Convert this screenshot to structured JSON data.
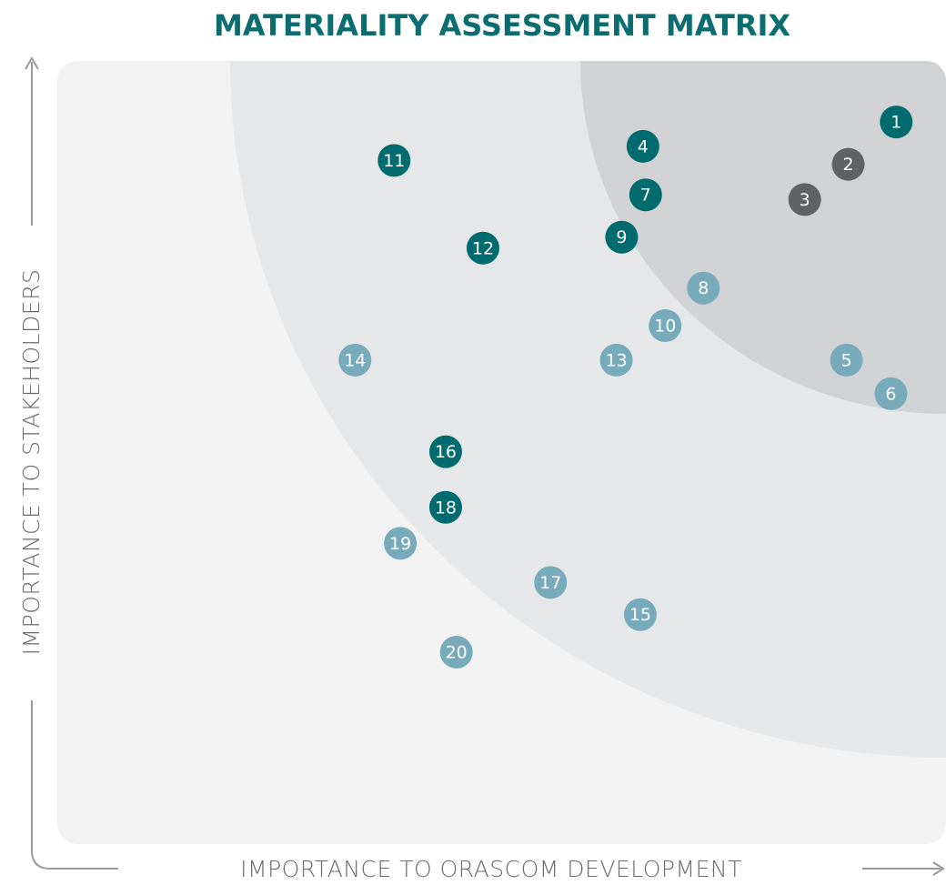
{
  "chart_data": {
    "type": "scatter",
    "title": "MATERIALITY ASSESSMENT MATRIX",
    "x_label": "IMPORTANCE TO ORASCOM DEVELOPMENT",
    "y_label": "IMPORTANCE TO STAKEHOLDERS",
    "xlim": [
      0,
      100
    ],
    "ylim": [
      0,
      100
    ],
    "points": [
      {
        "label": "1",
        "x": 94.4,
        "y": 92.2,
        "color": "#006b6e"
      },
      {
        "label": "2",
        "x": 89.0,
        "y": 86.8,
        "color": "#606163"
      },
      {
        "label": "3",
        "x": 84.1,
        "y": 82.3,
        "color": "#606163"
      },
      {
        "label": "4",
        "x": 65.9,
        "y": 89.1,
        "color": "#006b6e"
      },
      {
        "label": "5",
        "x": 88.8,
        "y": 61.8,
        "color": "#77aabb"
      },
      {
        "label": "6",
        "x": 93.8,
        "y": 57.5,
        "color": "#77aabb"
      },
      {
        "label": "7",
        "x": 66.2,
        "y": 82.9,
        "color": "#006b6e"
      },
      {
        "label": "8",
        "x": 72.7,
        "y": 71.0,
        "color": "#77aabb"
      },
      {
        "label": "9",
        "x": 63.5,
        "y": 77.5,
        "color": "#006b6e"
      },
      {
        "label": "10",
        "x": 68.4,
        "y": 66.2,
        "color": "#77aabb"
      },
      {
        "label": "11",
        "x": 37.9,
        "y": 87.3,
        "color": "#006b6e"
      },
      {
        "label": "12",
        "x": 47.9,
        "y": 76.1,
        "color": "#006b6e"
      },
      {
        "label": "13",
        "x": 62.9,
        "y": 61.8,
        "color": "#77aabb"
      },
      {
        "label": "14",
        "x": 33.5,
        "y": 61.8,
        "color": "#77aabb"
      },
      {
        "label": "15",
        "x": 65.6,
        "y": 29.3,
        "color": "#77aabb"
      },
      {
        "label": "16",
        "x": 43.7,
        "y": 50.1,
        "color": "#006b6e"
      },
      {
        "label": "17",
        "x": 55.5,
        "y": 33.4,
        "color": "#77aabb"
      },
      {
        "label": "18",
        "x": 43.7,
        "y": 43.0,
        "color": "#006b6e"
      },
      {
        "label": "19",
        "x": 38.6,
        "y": 38.4,
        "color": "#77aabb"
      },
      {
        "label": "20",
        "x": 44.9,
        "y": 24.5,
        "color": "#77aabb"
      }
    ]
  }
}
